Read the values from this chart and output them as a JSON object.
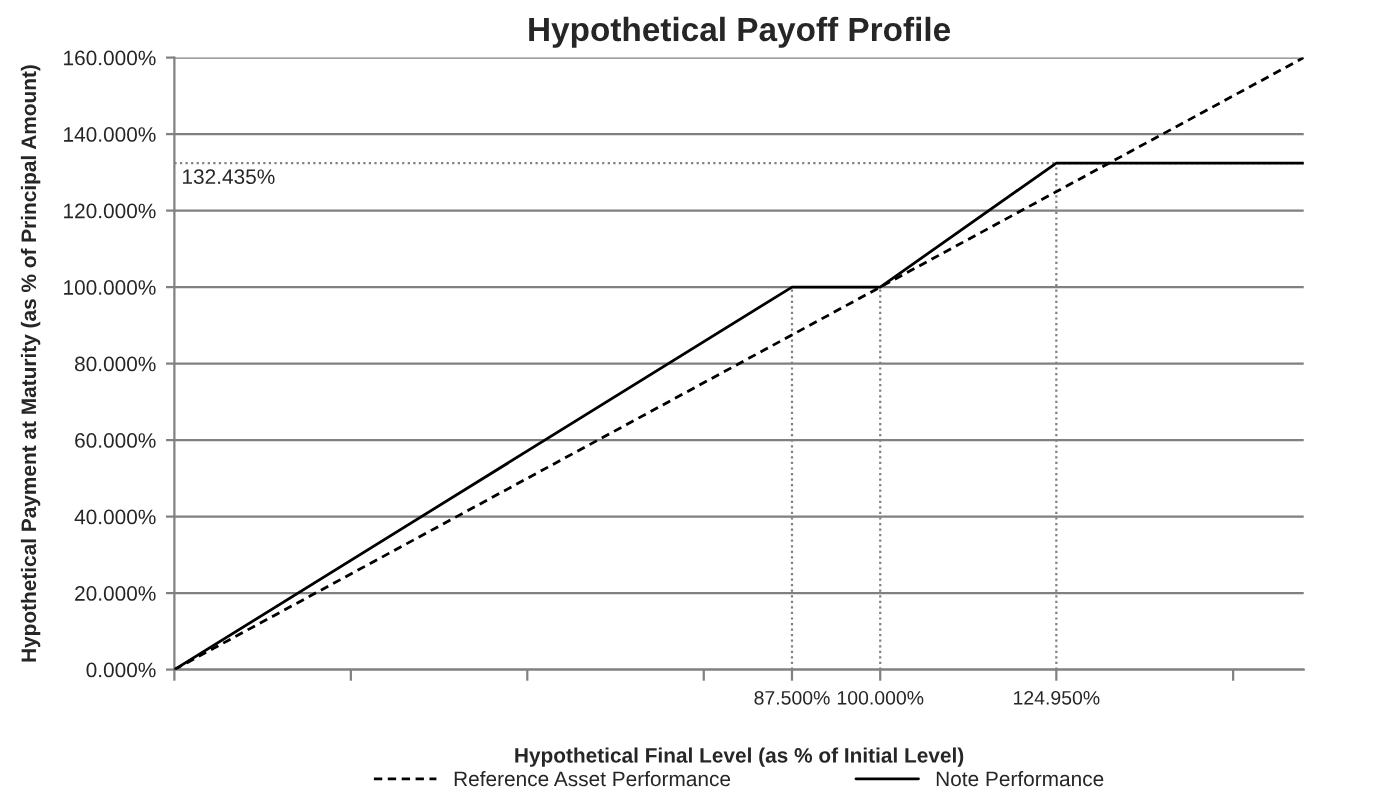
{
  "chart_data": {
    "type": "line",
    "title": "Hypothetical Payoff Profile",
    "xlabel": "Hypothetical Final Level (as % of Initial Level)",
    "ylabel": "Hypothetical Payment at Maturity (as % of Principal Amount)",
    "xlim": [
      0,
      160
    ],
    "ylim": [
      0,
      160
    ],
    "xticks": [
      {
        "value": 0,
        "label": null
      },
      {
        "value": 25,
        "label": null
      },
      {
        "value": 50,
        "label": null
      },
      {
        "value": 75,
        "label": null
      },
      {
        "value": 87.5,
        "label": "87.500%"
      },
      {
        "value": 100,
        "label": "100.000%"
      },
      {
        "value": 124.95,
        "label": "124.950%"
      },
      {
        "value": 150,
        "label": null
      }
    ],
    "yticks": [
      {
        "value": 0,
        "label": "0.000%"
      },
      {
        "value": 20,
        "label": "20.000%"
      },
      {
        "value": 40,
        "label": "40.000%"
      },
      {
        "value": 60,
        "label": "60.000%"
      },
      {
        "value": 80,
        "label": "80.000%"
      },
      {
        "value": 100,
        "label": "100.000%"
      },
      {
        "value": 120,
        "label": "120.000%"
      },
      {
        "value": 140,
        "label": "140.000%"
      },
      {
        "value": 160,
        "label": "160.000%"
      }
    ],
    "grid": "y",
    "legend": "bottom",
    "series": [
      {
        "name": "Reference Asset Performance",
        "color": "#000000",
        "line_style": "dashed",
        "x": [
          0,
          160
        ],
        "values": [
          0,
          160
        ]
      },
      {
        "name": "Note Performance",
        "color": "#000000",
        "line_style": "solid",
        "x": [
          0,
          87.5,
          100,
          124.95,
          160
        ],
        "values": [
          0,
          100,
          100,
          132.435,
          132.435
        ]
      }
    ],
    "ref_lines": [
      {
        "axis": "y",
        "value": 132.435,
        "label": "132.435%",
        "color": "#808080",
        "line_style": "dotted"
      },
      {
        "axis": "x",
        "value": 87.5,
        "color": "#808080",
        "line_style": "dotted"
      },
      {
        "axis": "x",
        "value": 100,
        "color": "#808080",
        "line_style": "dotted"
      },
      {
        "axis": "x",
        "value": 124.95,
        "color": "#808080",
        "line_style": "dotted"
      }
    ]
  }
}
